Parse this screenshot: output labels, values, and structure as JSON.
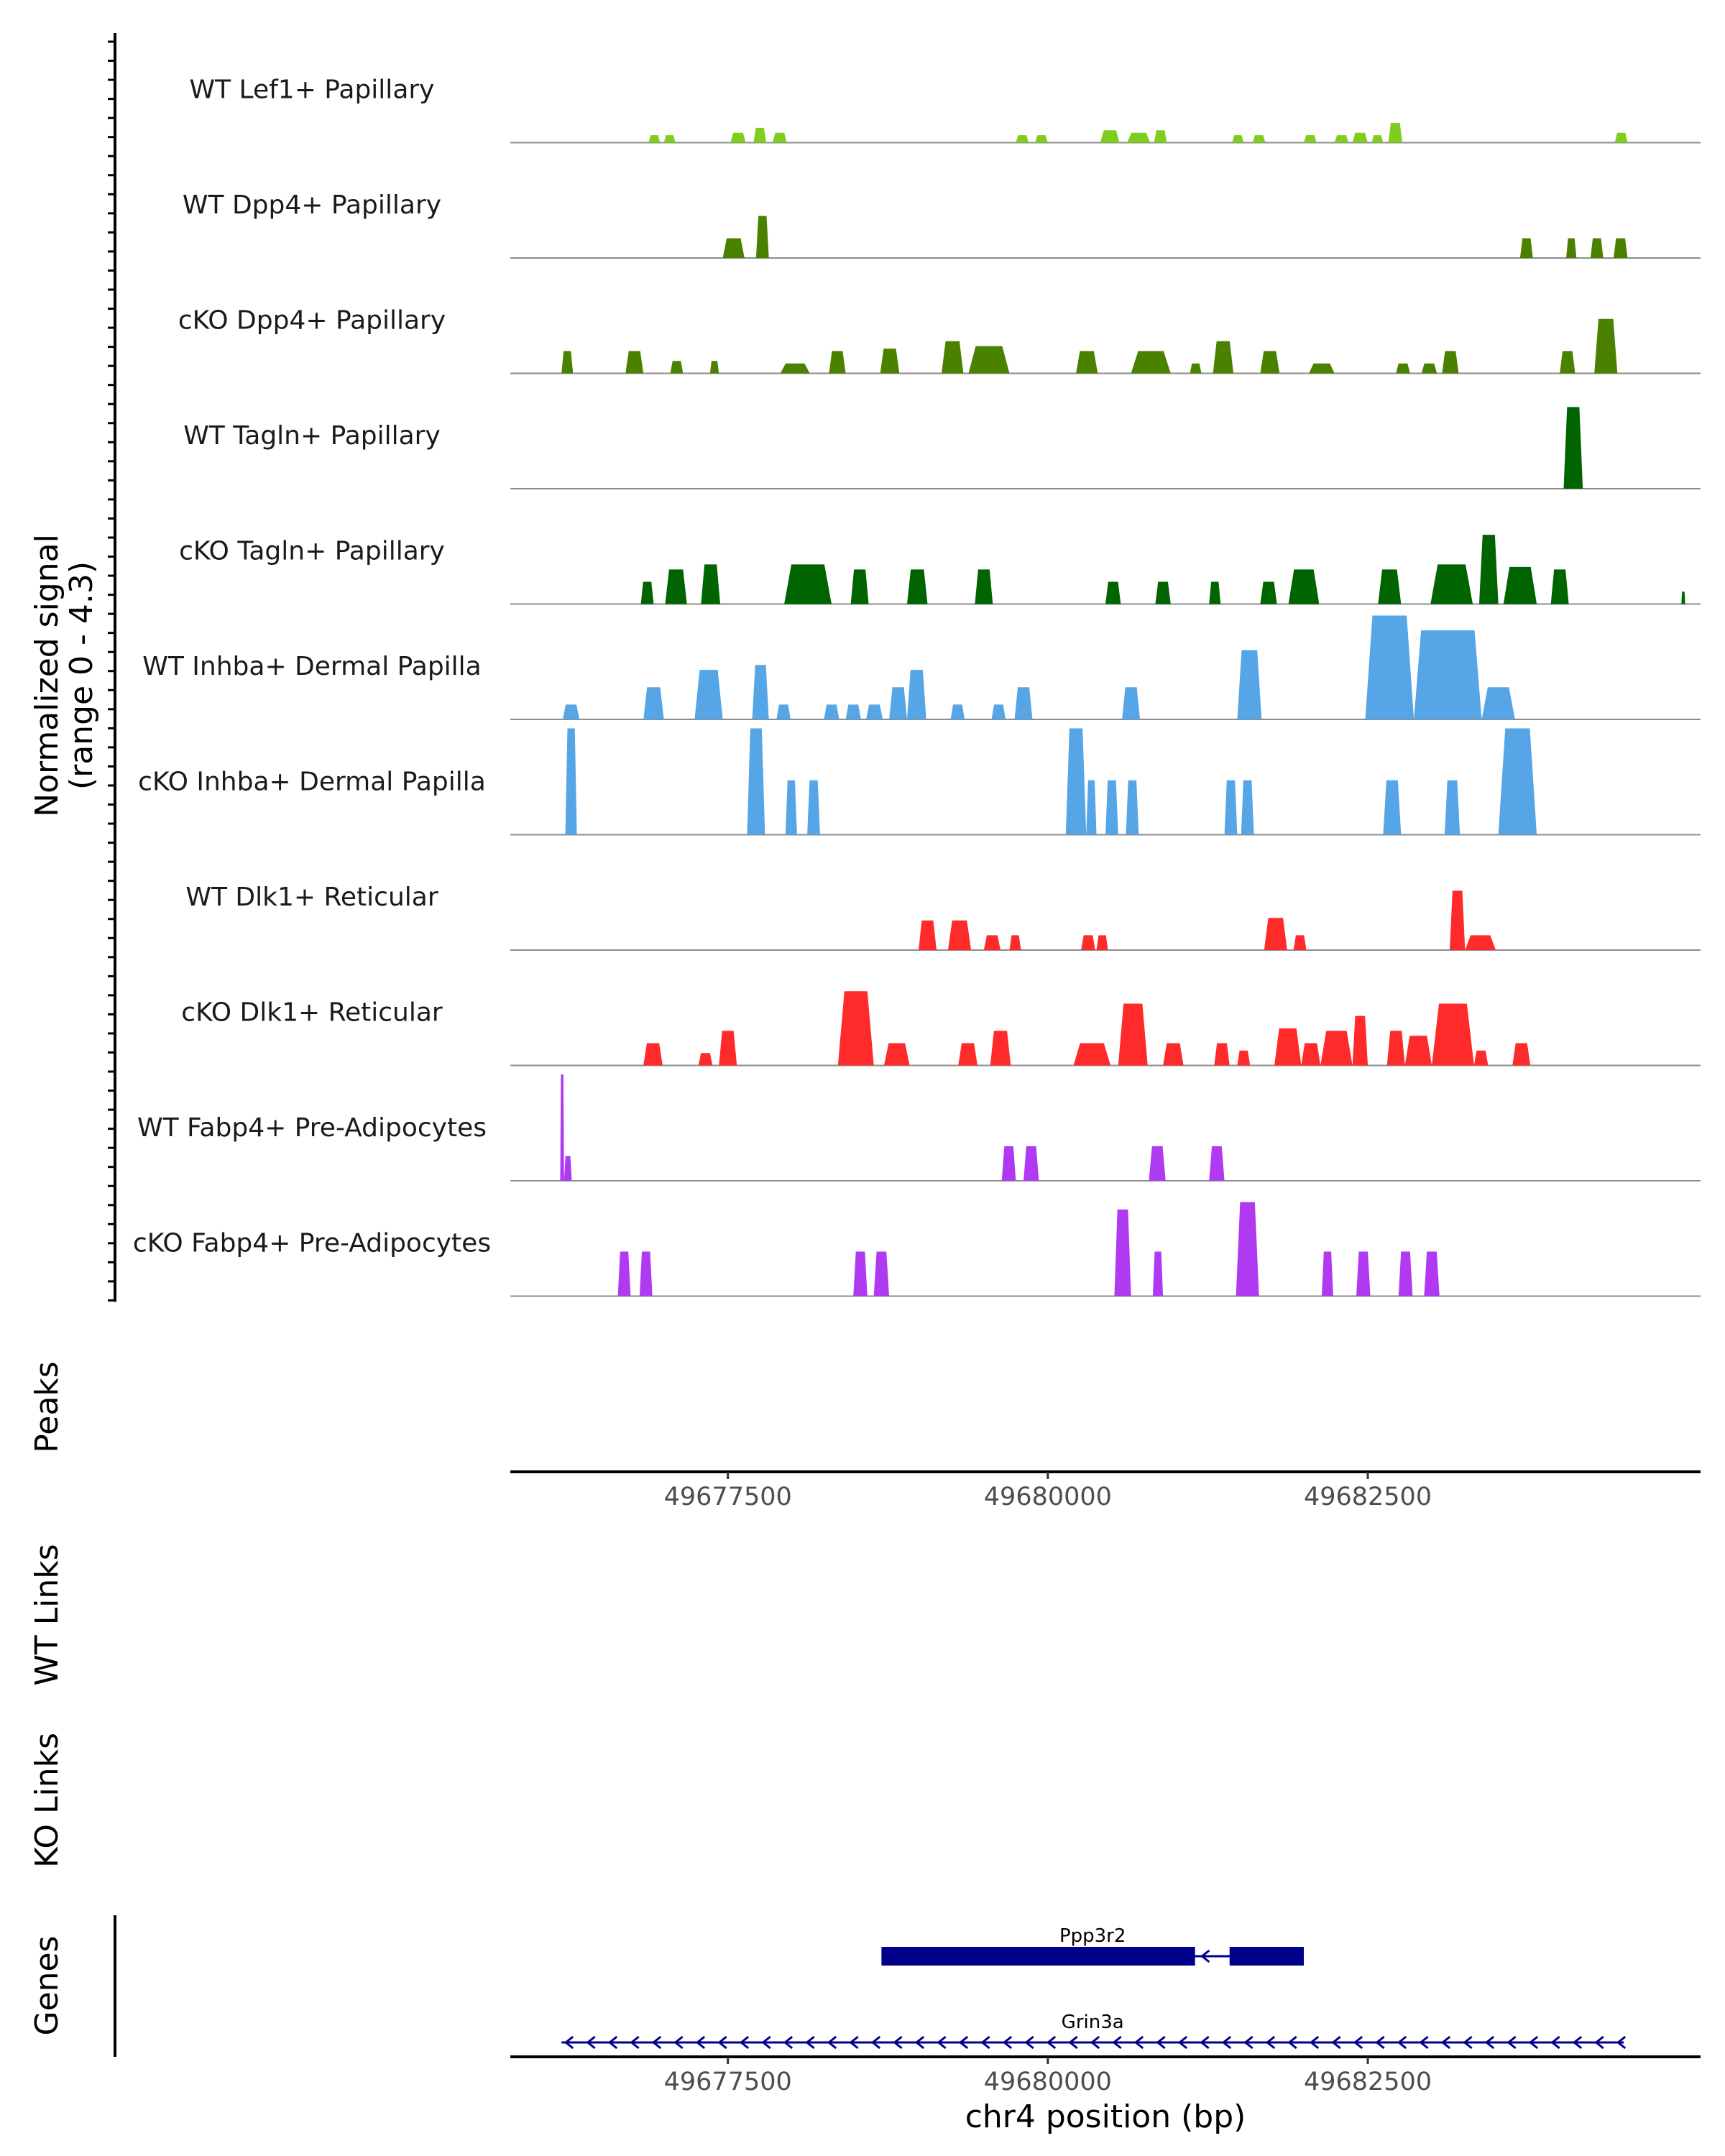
{
  "chart_data": {
    "type": "area",
    "title": "",
    "ylabel_line1": "Normalized signal",
    "ylabel_line2": "(range 0 - 4.3)",
    "ylim": [
      0,
      4.3
    ],
    "xlim": [
      49675800,
      49685100
    ],
    "xlabel": "chr4 position (bp)",
    "x_ticks": [
      49677500,
      49680000,
      49682500
    ],
    "x_tick_labels": [
      "49677500",
      "49680000",
      "49682500"
    ],
    "tracks": [
      {
        "name": "WT Lef1+ Papillary",
        "color": "#7fcd1f",
        "peaks": [
          [
            49676880,
            49676970,
            0.3
          ],
          [
            49677000,
            49677090,
            0.3
          ],
          [
            49677520,
            49677640,
            0.4
          ],
          [
            49677700,
            49677800,
            0.6
          ],
          [
            49677850,
            49677960,
            0.4
          ],
          [
            49679750,
            49679850,
            0.3
          ],
          [
            49679900,
            49680000,
            0.3
          ],
          [
            49680410,
            49680560,
            0.5
          ],
          [
            49680620,
            49680800,
            0.4
          ],
          [
            49680830,
            49680930,
            0.5
          ],
          [
            49681440,
            49681530,
            0.3
          ],
          [
            49681600,
            49681700,
            0.3
          ],
          [
            49682000,
            49682100,
            0.3
          ],
          [
            49682240,
            49682350,
            0.3
          ],
          [
            49682380,
            49682500,
            0.4
          ],
          [
            49682530,
            49682620,
            0.3
          ],
          [
            49682660,
            49682770,
            0.8
          ],
          [
            49684430,
            49684530,
            0.4
          ]
        ]
      },
      {
        "name": "WT Dpp4+ Papillary",
        "color": "#4a8200",
        "peaks": [
          [
            49677460,
            49677630,
            0.8
          ],
          [
            49677720,
            49677820,
            1.7
          ],
          [
            49683690,
            49683790,
            0.8
          ],
          [
            49684050,
            49684130,
            0.8
          ],
          [
            49684240,
            49684340,
            0.8
          ],
          [
            49684420,
            49684530,
            0.8
          ]
        ]
      },
      {
        "name": "cKO Dpp4+ Papillary",
        "color": "#4a8200",
        "peaks": [
          [
            49676200,
            49676290,
            0.9
          ],
          [
            49676700,
            49676840,
            0.9
          ],
          [
            49677050,
            49677150,
            0.5
          ],
          [
            49677360,
            49677430,
            0.5
          ],
          [
            49677910,
            49678140,
            0.4
          ],
          [
            49678290,
            49678420,
            0.9
          ],
          [
            49678690,
            49678840,
            1.0
          ],
          [
            49679170,
            49679340,
            1.3
          ],
          [
            49679380,
            49679700,
            1.1
          ],
          [
            49680220,
            49680390,
            0.9
          ],
          [
            49680650,
            49680960,
            0.9
          ],
          [
            49681110,
            49681200,
            0.4
          ],
          [
            49681290,
            49681450,
            1.3
          ],
          [
            49681660,
            49681810,
            0.9
          ],
          [
            49682040,
            49682240,
            0.4
          ],
          [
            49682720,
            49682830,
            0.4
          ],
          [
            49682920,
            49683040,
            0.4
          ],
          [
            49683080,
            49683210,
            0.9
          ],
          [
            49684000,
            49684120,
            0.9
          ],
          [
            49684270,
            49684450,
            2.2
          ]
        ]
      },
      {
        "name": "WT Tagln+ Papillary",
        "color": "#006400",
        "peaks": [
          [
            49684030,
            49684180,
            3.3
          ]
        ]
      },
      {
        "name": "cKO Tagln+ Papillary",
        "color": "#006400",
        "peaks": [
          [
            49676820,
            49676920,
            0.9
          ],
          [
            49677010,
            49677180,
            1.4
          ],
          [
            49677290,
            49677440,
            1.6
          ],
          [
            49677940,
            49678310,
            1.6
          ],
          [
            49678460,
            49678600,
            1.4
          ],
          [
            49678900,
            49679060,
            1.4
          ],
          [
            49679430,
            49679570,
            1.4
          ],
          [
            49680450,
            49680570,
            0.9
          ],
          [
            49680840,
            49680960,
            0.9
          ],
          [
            49681260,
            49681350,
            0.9
          ],
          [
            49681660,
            49681790,
            0.9
          ],
          [
            49681880,
            49682120,
            1.4
          ],
          [
            49682580,
            49682760,
            1.4
          ],
          [
            49682990,
            49683320,
            1.6
          ],
          [
            49683370,
            49683520,
            2.8
          ],
          [
            49683560,
            49683820,
            1.5
          ],
          [
            49683930,
            49684070,
            1.4
          ],
          [
            49684950,
            49684980,
            0.5
          ]
        ]
      },
      {
        "name": "WT Inhba+ Dermal Papilla",
        "color": "#56a5e6",
        "peaks": [
          [
            49676210,
            49676340,
            0.6
          ],
          [
            49676840,
            49677000,
            1.3
          ],
          [
            49677240,
            49677460,
            2.0
          ],
          [
            49677690,
            49677820,
            2.2
          ],
          [
            49677880,
            49677990,
            0.6
          ],
          [
            49678250,
            49678370,
            0.6
          ],
          [
            49678420,
            49678540,
            0.6
          ],
          [
            49678580,
            49678710,
            0.6
          ],
          [
            49678760,
            49678900,
            1.3
          ],
          [
            49678900,
            49679050,
            2.0
          ],
          [
            49679240,
            49679350,
            0.6
          ],
          [
            49679560,
            49679670,
            0.6
          ],
          [
            49679740,
            49679880,
            1.3
          ],
          [
            49680580,
            49680720,
            1.3
          ],
          [
            49681480,
            49681670,
            2.8
          ],
          [
            49682480,
            49682860,
            4.2
          ],
          [
            49682860,
            49683390,
            3.6
          ],
          [
            49683390,
            49683650,
            1.3
          ]
        ]
      },
      {
        "name": "cKO Inhba+ Dermal Papilla",
        "color": "#56a5e6",
        "peaks": [
          [
            49676230,
            49676320,
            4.3
          ],
          [
            49677650,
            49677790,
            4.3
          ],
          [
            49677950,
            49678040,
            2.2
          ],
          [
            49678120,
            49678220,
            2.2
          ],
          [
            49680140,
            49680300,
            4.3
          ],
          [
            49680300,
            49680380,
            2.2
          ],
          [
            49680450,
            49680550,
            2.2
          ],
          [
            49680610,
            49680710,
            2.2
          ],
          [
            49681380,
            49681480,
            2.2
          ],
          [
            49681510,
            49681610,
            2.2
          ],
          [
            49682620,
            49682760,
            2.2
          ],
          [
            49683100,
            49683220,
            2.2
          ],
          [
            49683520,
            49683820,
            4.3
          ]
        ]
      },
      {
        "name": "WT Dlk1+ Reticular",
        "color": "#ff2a2a",
        "peaks": [
          [
            49678990,
            49679130,
            1.2
          ],
          [
            49679220,
            49679400,
            1.2
          ],
          [
            49679500,
            49679630,
            0.6
          ],
          [
            49679700,
            49679790,
            0.6
          ],
          [
            49680260,
            49680370,
            0.6
          ],
          [
            49680380,
            49680470,
            0.6
          ],
          [
            49681690,
            49681870,
            1.3
          ],
          [
            49681920,
            49682020,
            0.6
          ],
          [
            49683140,
            49683260,
            2.4
          ],
          [
            49683260,
            49683500,
            0.6
          ]
        ]
      },
      {
        "name": "cKO Dlk1+ Reticular",
        "color": "#ff2a2a",
        "peaks": [
          [
            49676840,
            49676990,
            0.9
          ],
          [
            49677270,
            49677380,
            0.5
          ],
          [
            49677430,
            49677570,
            1.4
          ],
          [
            49678360,
            49678640,
            3.0
          ],
          [
            49678720,
            49678920,
            0.9
          ],
          [
            49679300,
            49679450,
            0.9
          ],
          [
            49679550,
            49679710,
            1.4
          ],
          [
            49680200,
            49680490,
            0.9
          ],
          [
            49680550,
            49680780,
            2.5
          ],
          [
            49680900,
            49681060,
            0.9
          ],
          [
            49681300,
            49681420,
            0.9
          ],
          [
            49681480,
            49681580,
            0.6
          ],
          [
            49681770,
            49681980,
            1.5
          ],
          [
            49681980,
            49682130,
            0.9
          ],
          [
            49682130,
            49682380,
            1.4
          ],
          [
            49682380,
            49682500,
            2.0
          ],
          [
            49682650,
            49682790,
            1.4
          ],
          [
            49682790,
            49683000,
            1.2
          ],
          [
            49683000,
            49683330,
            2.5
          ],
          [
            49683330,
            49683440,
            0.6
          ],
          [
            49683630,
            49683770,
            0.9
          ]
        ]
      },
      {
        "name": "WT Fabp4+ Pre-Adipocytes",
        "color": "#b03af1",
        "peaks": [
          [
            49676190,
            49676220,
            4.3
          ],
          [
            49676220,
            49676280,
            1.0
          ],
          [
            49679640,
            49679750,
            1.4
          ],
          [
            49679810,
            49679930,
            1.4
          ],
          [
            49680790,
            49680920,
            1.4
          ],
          [
            49681260,
            49681380,
            1.4
          ]
        ]
      },
      {
        "name": "cKO Fabp4+ Pre-Adipocytes",
        "color": "#b03af1",
        "peaks": [
          [
            49676640,
            49676740,
            1.8
          ],
          [
            49676810,
            49676910,
            1.8
          ],
          [
            49678480,
            49678590,
            1.8
          ],
          [
            49678640,
            49678760,
            1.8
          ],
          [
            49680520,
            49680650,
            3.5
          ],
          [
            49680820,
            49680900,
            1.8
          ],
          [
            49681470,
            49681650,
            3.8
          ],
          [
            49682140,
            49682230,
            1.8
          ],
          [
            49682410,
            49682520,
            1.8
          ],
          [
            49682740,
            49682850,
            1.8
          ],
          [
            49682940,
            49683060,
            1.8
          ]
        ]
      }
    ],
    "panels": {
      "peaks_label": "Peaks",
      "wt_links_label": "WT Links",
      "ko_links_label": "KO Links",
      "genes_label": "Genes"
    },
    "genes": [
      {
        "name": "Ppp3r2",
        "color": "#00008b",
        "strand": "-",
        "start": 49678700,
        "end": 49682000,
        "exons": [
          [
            49678700,
            49681150
          ],
          [
            49681420,
            49682000
          ]
        ]
      },
      {
        "name": "Grin3a",
        "color": "#00008b",
        "strand": "-",
        "start": 49676200,
        "end": 49684500,
        "exons": []
      }
    ]
  }
}
